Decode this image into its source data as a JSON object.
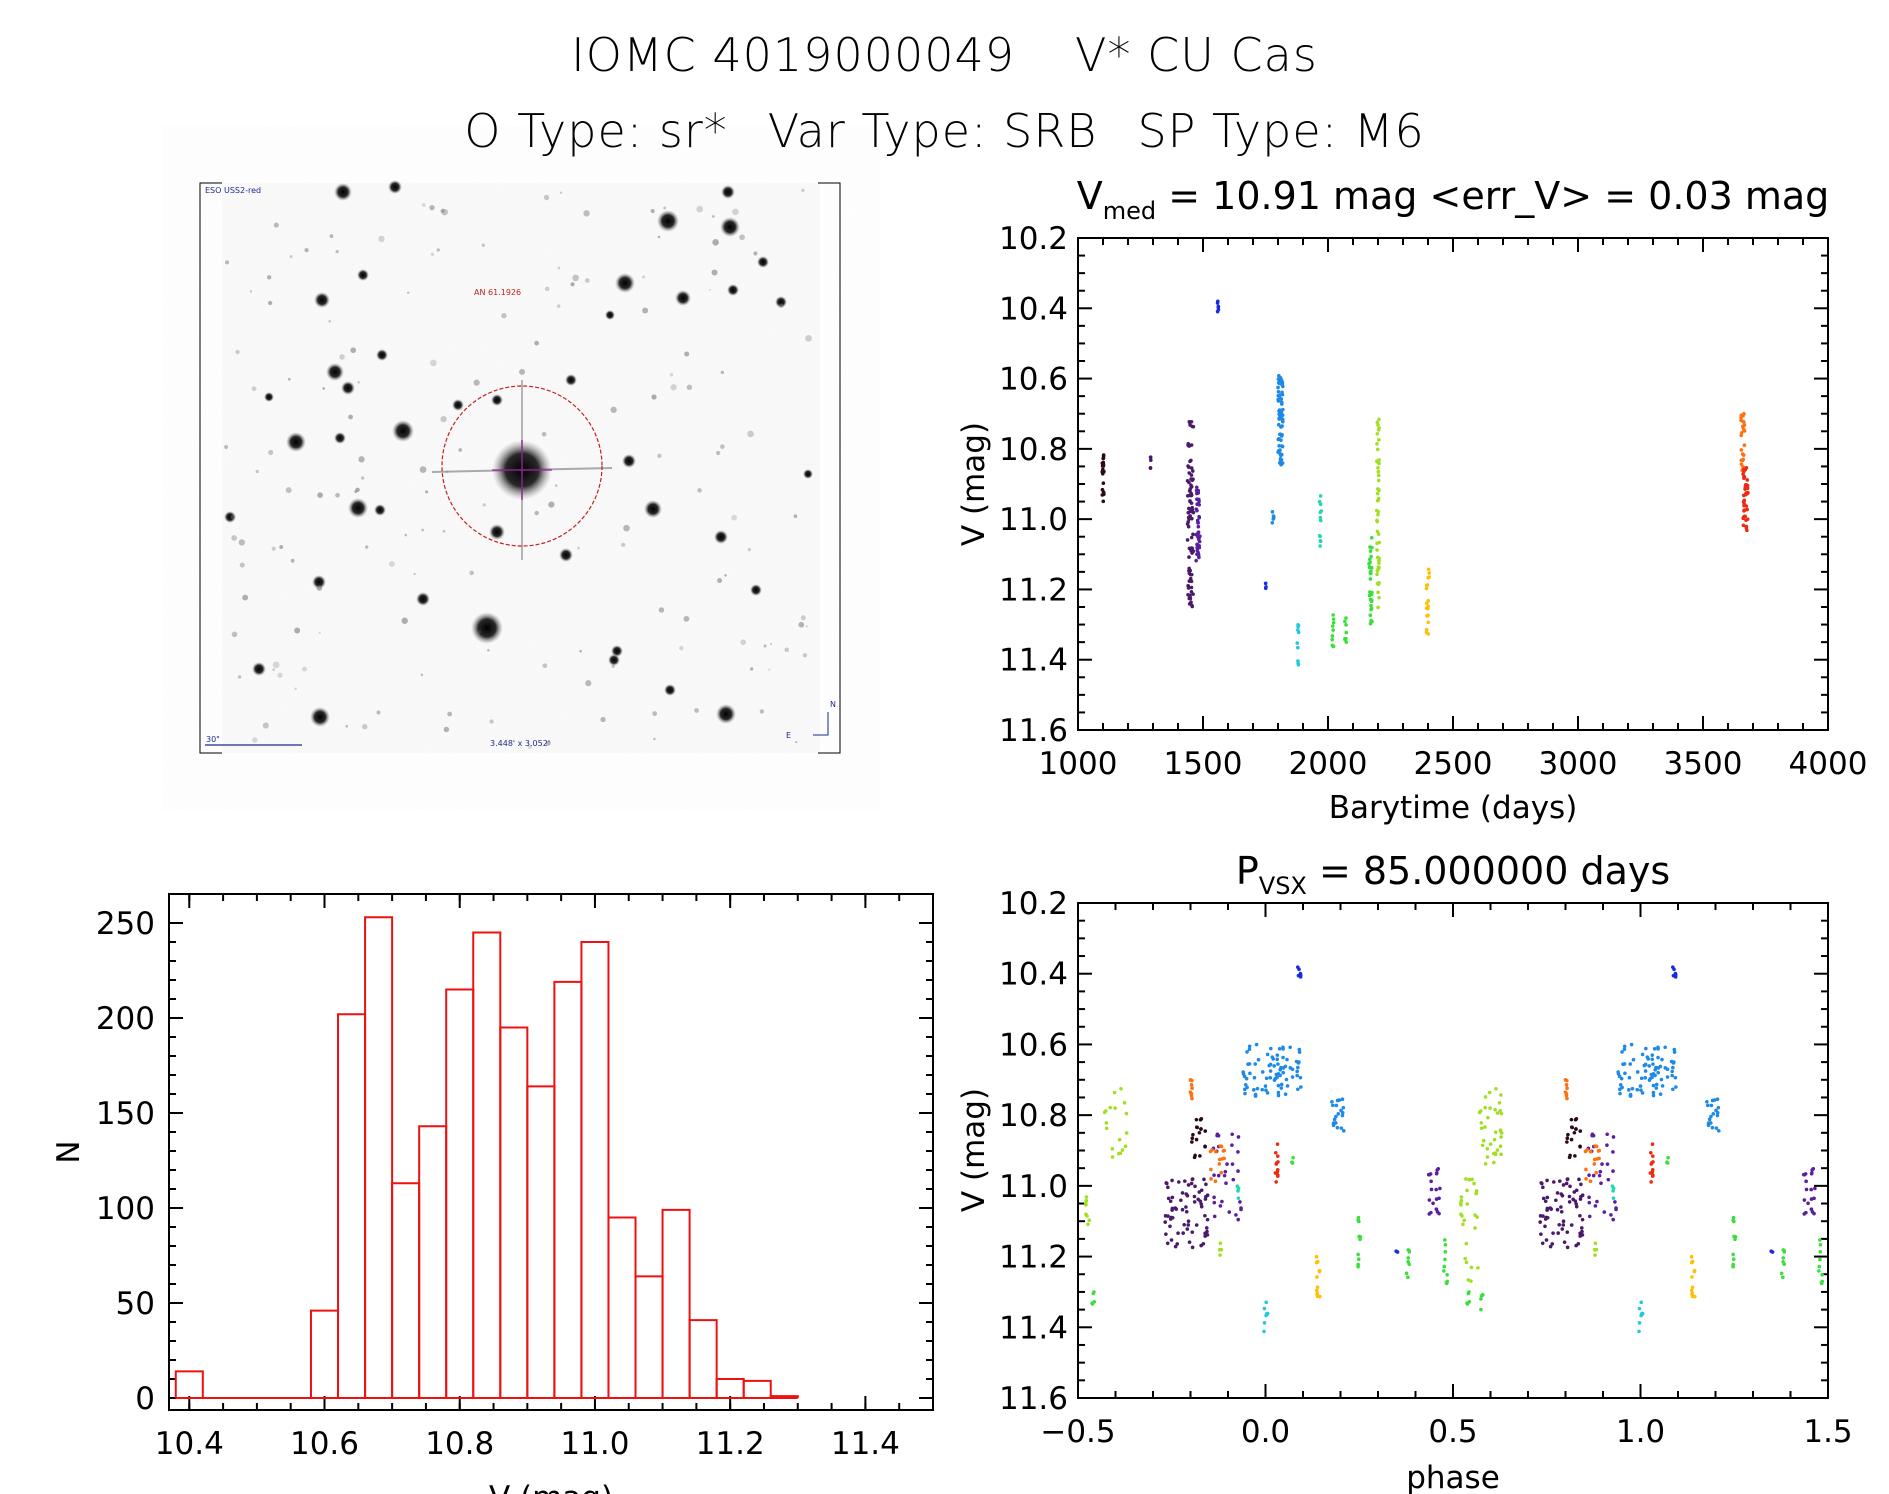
{
  "header": {
    "line1_a": "IOMC 4019000049",
    "line1_b": "V* CU Cas",
    "otype": "O Type: sr*",
    "vartype": "Var Type: SRB",
    "sptype": "SP Type: M6"
  },
  "finder": {
    "survey_label": "ESO USS2-red",
    "target_label": "AN 61.1926",
    "scale_label": "30\"",
    "size_label": "3.448' x 3.052'",
    "east_label": "E",
    "north_label": "N"
  },
  "colors": {
    "hist": "#ee1111",
    "palette": [
      "#2a0a1a",
      "#4a1a6a",
      "#5a1ea0",
      "#1a2ae0",
      "#1e8ae8",
      "#20c8e0",
      "#20d8b0",
      "#3ae03a",
      "#a0e020",
      "#ffc000",
      "#ff7010",
      "#ee2a10"
    ]
  },
  "chart_data": [
    {
      "id": "lightcurve",
      "type": "scatter",
      "title_main": "V",
      "title_sub": "med",
      "title_rest": " = 10.91 mag <err_V> = 0.03 mag",
      "xlabel": "Barytime (days)",
      "ylabel": "V (mag)",
      "xlim": [
        1000,
        4000
      ],
      "ylim": [
        10.2,
        11.6
      ],
      "y_inverted": true,
      "xticks": [
        1000,
        1500,
        2000,
        2500,
        3000,
        3500,
        4000
      ],
      "xtick_labels": [
        "1000",
        "1500",
        "2000",
        "2500",
        "3000",
        "3500",
        "4000"
      ],
      "yticks": [
        10.2,
        10.4,
        10.6,
        10.8,
        11.0,
        11.2,
        11.4,
        11.6
      ],
      "ytick_labels": [
        "10.2",
        "10.4",
        "10.6",
        "10.8",
        "11.0",
        "11.2",
        "11.4",
        "11.6"
      ],
      "clusters": [
        {
          "t": 1100,
          "dt": 4,
          "ymin": 10.79,
          "ymax": 10.95,
          "n": 20,
          "c": 0
        },
        {
          "t": 1290,
          "dt": 2,
          "ymin": 10.82,
          "ymax": 10.86,
          "n": 5,
          "c": 1
        },
        {
          "t": 1450,
          "dt": 12,
          "ymin": 10.72,
          "ymax": 11.25,
          "n": 90,
          "c": 1
        },
        {
          "t": 1480,
          "dt": 8,
          "ymin": 10.9,
          "ymax": 11.12,
          "n": 40,
          "c": 2
        },
        {
          "t": 1560,
          "dt": 2,
          "ymin": 10.38,
          "ymax": 10.41,
          "n": 6,
          "c": 3
        },
        {
          "t": 1750,
          "dt": 2,
          "ymin": 11.18,
          "ymax": 11.2,
          "n": 3,
          "c": 3
        },
        {
          "t": 1780,
          "dt": 3,
          "ymin": 10.97,
          "ymax": 11.03,
          "n": 6,
          "c": 4
        },
        {
          "t": 1810,
          "dt": 10,
          "ymin": 10.59,
          "ymax": 10.85,
          "n": 70,
          "c": 4
        },
        {
          "t": 1880,
          "dt": 3,
          "ymin": 11.3,
          "ymax": 11.44,
          "n": 10,
          "c": 5
        },
        {
          "t": 1970,
          "dt": 4,
          "ymin": 10.93,
          "ymax": 11.08,
          "n": 12,
          "c": 6
        },
        {
          "t": 2020,
          "dt": 4,
          "ymin": 11.27,
          "ymax": 11.38,
          "n": 10,
          "c": 7
        },
        {
          "t": 2070,
          "dt": 4,
          "ymin": 11.28,
          "ymax": 11.35,
          "n": 8,
          "c": 7
        },
        {
          "t": 2170,
          "dt": 6,
          "ymin": 11.05,
          "ymax": 11.3,
          "n": 30,
          "c": 7
        },
        {
          "t": 2200,
          "dt": 5,
          "ymin": 10.71,
          "ymax": 11.27,
          "n": 50,
          "c": 8
        },
        {
          "t": 2400,
          "dt": 6,
          "ymin": 11.13,
          "ymax": 11.34,
          "n": 20,
          "c": 9
        },
        {
          "t": 3660,
          "dt": 8,
          "ymin": 10.7,
          "ymax": 10.88,
          "n": 25,
          "c": 10
        },
        {
          "t": 3670,
          "dt": 10,
          "ymin": 10.85,
          "ymax": 11.04,
          "n": 40,
          "c": 11
        }
      ]
    },
    {
      "id": "histogram",
      "type": "bar",
      "xlabel": "V (mag)",
      "ylabel": "N",
      "xlim": [
        10.37,
        11.5
      ],
      "ylim": [
        0,
        260
      ],
      "bin_width": 0.04,
      "bin_start": 10.38,
      "values": [
        14,
        0,
        0,
        0,
        0,
        46,
        202,
        253,
        113,
        143,
        215,
        245,
        195,
        164,
        219,
        240,
        95,
        64,
        99,
        41,
        10,
        9,
        1
      ],
      "xticks": [
        10.4,
        10.6,
        10.8,
        11.0,
        11.2,
        11.4
      ],
      "xtick_labels": [
        "10.4",
        "10.6",
        "10.8",
        "11.0",
        "11.2",
        "11.4"
      ],
      "yticks": [
        0,
        50,
        100,
        150,
        200,
        250
      ],
      "ytick_labels": [
        "0",
        "50",
        "100",
        "150",
        "200",
        "250"
      ]
    },
    {
      "id": "phased",
      "type": "scatter",
      "title_main": "P",
      "title_sub": "VSX",
      "title_rest": " = 85.000000 days",
      "xlabel": "phase",
      "ylabel": "V (mag)",
      "xlim": [
        -0.5,
        1.5
      ],
      "ylim": [
        10.2,
        11.6
      ],
      "y_inverted": true,
      "xticks": [
        -0.5,
        0.0,
        0.5,
        1.0,
        1.5
      ],
      "xtick_labels": [
        "−0.5",
        "0.0",
        "0.5",
        "1.0",
        "1.5"
      ],
      "yticks": [
        10.2,
        10.4,
        10.6,
        10.8,
        11.0,
        11.2,
        11.4,
        11.6
      ],
      "ytick_labels": [
        "10.2",
        "10.4",
        "10.6",
        "10.8",
        "11.0",
        "11.2",
        "11.4",
        "11.6"
      ],
      "clusters": [
        {
          "p": 0.09,
          "dp": 0.004,
          "ymin": 10.38,
          "ymax": 10.41,
          "n": 6,
          "c": 3
        },
        {
          "p": 0.02,
          "dp": 0.08,
          "ymin": 10.6,
          "ymax": 10.75,
          "n": 80,
          "c": 4
        },
        {
          "p": 0.19,
          "dp": 0.02,
          "ymin": 10.75,
          "ymax": 10.85,
          "n": 20,
          "c": 4
        },
        {
          "p": -0.21,
          "dp": 0.06,
          "ymin": 10.98,
          "ymax": 11.18,
          "n": 70,
          "c": 1
        },
        {
          "p": -0.1,
          "dp": 0.04,
          "ymin": 10.85,
          "ymax": 11.1,
          "n": 30,
          "c": 2
        },
        {
          "p": -0.18,
          "dp": 0.02,
          "ymin": 10.8,
          "ymax": 10.92,
          "n": 18,
          "c": 0
        },
        {
          "p": -0.13,
          "dp": 0.02,
          "ymin": 10.88,
          "ymax": 11.0,
          "n": 15,
          "c": 10
        },
        {
          "p": -0.2,
          "dp": 0.006,
          "ymin": 10.7,
          "ymax": 10.76,
          "n": 8,
          "c": 10
        },
        {
          "p": 0.03,
          "dp": 0.005,
          "ymin": 10.88,
          "ymax": 11.0,
          "n": 12,
          "c": 11
        },
        {
          "p": -0.4,
          "dp": 0.03,
          "ymin": 10.72,
          "ymax": 10.95,
          "n": 18,
          "c": 8
        },
        {
          "p": -0.48,
          "dp": 0.01,
          "ymin": 11.0,
          "ymax": 11.12,
          "n": 8,
          "c": 8
        },
        {
          "p": -0.46,
          "dp": 0.006,
          "ymin": 11.28,
          "ymax": 11.34,
          "n": 5,
          "c": 7
        },
        {
          "p": -0.07,
          "dp": 0.005,
          "ymin": 11.0,
          "ymax": 11.05,
          "n": 4,
          "c": 6
        },
        {
          "p": -0.12,
          "dp": 0.005,
          "ymin": 11.15,
          "ymax": 11.2,
          "n": 4,
          "c": 8
        },
        {
          "p": 0.07,
          "dp": 0.004,
          "ymin": 10.92,
          "ymax": 10.96,
          "n": 3,
          "c": 7
        },
        {
          "p": 0.0,
          "dp": 0.006,
          "ymin": 11.32,
          "ymax": 11.44,
          "n": 8,
          "c": 5
        },
        {
          "p": 0.14,
          "dp": 0.005,
          "ymin": 11.2,
          "ymax": 11.33,
          "n": 12,
          "c": 9
        },
        {
          "p": 0.25,
          "dp": 0.004,
          "ymin": 11.08,
          "ymax": 11.25,
          "n": 10,
          "c": 7
        },
        {
          "p": 0.35,
          "dp": 0.004,
          "ymin": 11.18,
          "ymax": 11.2,
          "n": 2,
          "c": 3
        },
        {
          "p": 0.38,
          "dp": 0.004,
          "ymin": 11.18,
          "ymax": 11.27,
          "n": 8,
          "c": 7
        },
        {
          "p": 0.45,
          "dp": 0.02,
          "ymin": 10.95,
          "ymax": 11.08,
          "n": 20,
          "c": 2
        },
        {
          "p": 0.48,
          "dp": 0.005,
          "ymin": 11.15,
          "ymax": 11.28,
          "n": 10,
          "c": 7
        },
        {
          "p": 0.55,
          "dp": 0.02,
          "ymin": 10.98,
          "ymax": 11.28,
          "n": 18,
          "c": 8
        },
        {
          "p": 0.58,
          "dp": 0.006,
          "ymin": 11.28,
          "ymax": 11.36,
          "n": 5,
          "c": 7
        },
        {
          "p": 0.6,
          "dp": 0.03,
          "ymin": 10.72,
          "ymax": 10.95,
          "n": 18,
          "c": 8
        }
      ]
    }
  ]
}
